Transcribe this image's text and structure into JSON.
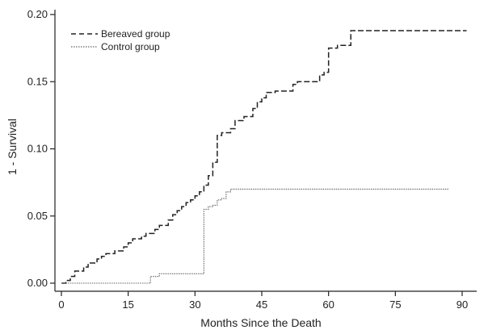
{
  "chart_data": {
    "type": "line",
    "title": "",
    "xlabel": "Months Since the Death",
    "ylabel": "1 - Survival",
    "xlim": [
      0,
      95
    ],
    "ylim": [
      0,
      0.2
    ],
    "xticks": [
      0,
      15,
      30,
      45,
      60,
      75,
      90
    ],
    "xtick_labels": [
      "0",
      "15",
      "30",
      "45",
      "60",
      "75",
      "90"
    ],
    "yticks": [
      0,
      0.05,
      0.1,
      0.15,
      0.2
    ],
    "ytick_labels": [
      "0.00",
      "0.05",
      "0.10",
      "0.15",
      "0.20"
    ],
    "grid": false,
    "legend_position": "top-left",
    "series": [
      {
        "name": "Bereaved group",
        "style": "dashed",
        "color": "#222222",
        "step_x": [
          0,
          1,
          2,
          3,
          5,
          6,
          8,
          9,
          10,
          12,
          14,
          15,
          16,
          18,
          19,
          21,
          22,
          24,
          25,
          26,
          27,
          28,
          29,
          30,
          31,
          32,
          33,
          34,
          35,
          36,
          38,
          39,
          41,
          43,
          44,
          45,
          46,
          48,
          52,
          53,
          58,
          59,
          60,
          62,
          63,
          65,
          66,
          91
        ],
        "step_y": [
          0.0,
          0.002,
          0.005,
          0.009,
          0.012,
          0.015,
          0.018,
          0.02,
          0.022,
          0.024,
          0.027,
          0.03,
          0.033,
          0.035,
          0.037,
          0.04,
          0.043,
          0.047,
          0.051,
          0.054,
          0.057,
          0.06,
          0.062,
          0.065,
          0.068,
          0.073,
          0.08,
          0.09,
          0.11,
          0.112,
          0.115,
          0.121,
          0.124,
          0.13,
          0.135,
          0.138,
          0.142,
          0.143,
          0.148,
          0.15,
          0.155,
          0.157,
          0.175,
          0.177,
          0.177,
          0.188,
          0.188,
          0.188
        ]
      },
      {
        "name": "Control group",
        "style": "dotted",
        "color": "#666666",
        "step_x": [
          0,
          19,
          20,
          22,
          32,
          33,
          34,
          35,
          36,
          37,
          38,
          87
        ],
        "step_y": [
          0.0,
          0.0,
          0.005,
          0.007,
          0.055,
          0.057,
          0.058,
          0.062,
          0.063,
          0.068,
          0.07,
          0.07
        ]
      }
    ]
  }
}
